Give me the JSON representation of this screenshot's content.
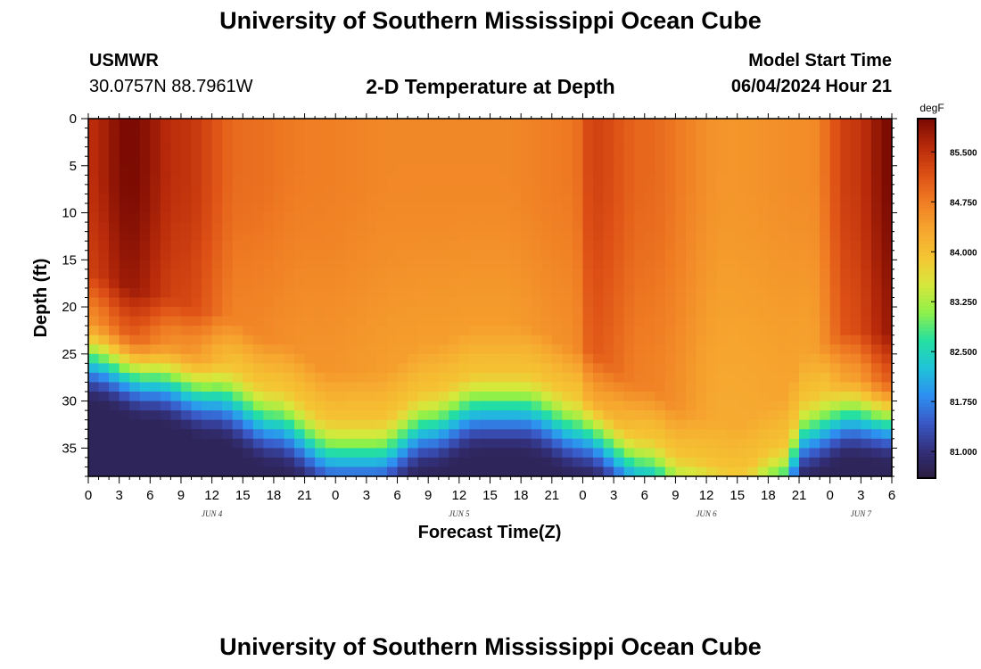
{
  "header": {
    "title": "University of Southern Mississippi Ocean Cube",
    "station": "USMWR",
    "coords": "30.0757N  88.7961W",
    "subtitle": "2-D Temperature at Depth",
    "model_label": "Model Start Time",
    "model_time": "06/04/2024 Hour 21"
  },
  "footer": {
    "title": "University of Southern Mississippi Ocean Cube"
  },
  "chart_data": {
    "type": "heatmap",
    "title": "2-D Temperature at Depth",
    "xlabel": "Forecast Time(Z)",
    "ylabel": "Depth (ft)",
    "x_tick_labels": [
      "0",
      "3",
      "6",
      "9",
      "12",
      "15",
      "18",
      "21",
      "0",
      "3",
      "6",
      "9",
      "12",
      "15",
      "18",
      "21",
      "0",
      "3",
      "6",
      "9",
      "12",
      "15",
      "18",
      "21",
      "0",
      "3",
      "6"
    ],
    "x_range_hours": [
      0,
      78
    ],
    "day_labels": [
      {
        "label": "JUN 4",
        "hour": 12
      },
      {
        "label": "JUN 5",
        "hour": 36
      },
      {
        "label": "JUN 6",
        "hour": 60
      },
      {
        "label": "JUN 7",
        "hour": 75
      }
    ],
    "y_ticks": [
      0,
      5,
      10,
      15,
      20,
      25,
      30,
      35
    ],
    "y_tick_labels": [
      "0",
      "5",
      "10",
      "15",
      "20",
      "25",
      "30",
      "35"
    ],
    "ylim": [
      0,
      38
    ],
    "colorbar": {
      "unit": "degF",
      "ticks": [
        81.0,
        81.75,
        82.5,
        83.25,
        84.0,
        84.75,
        85.5
      ],
      "tick_labels": [
        "81.000",
        "81.750",
        "82.500",
        "83.250",
        "84.000",
        "84.750",
        "85.500"
      ],
      "range": [
        80.6,
        86.0
      ],
      "colors": [
        "#2a1b3d",
        "#33307a",
        "#3a58c6",
        "#2e8ff0",
        "#1fc3d8",
        "#25e0a0",
        "#8ef04a",
        "#d6e83c",
        "#f5c533",
        "#f6a52f",
        "#f07e24",
        "#dd4f15",
        "#b82a0a",
        "#7a0a03"
      ]
    },
    "surface_profile": [
      {
        "hour": 0,
        "value": 85.55
      },
      {
        "hour": 4,
        "value": 86.0
      },
      {
        "hour": 9,
        "value": 85.5
      },
      {
        "hour": 15,
        "value": 84.9
      },
      {
        "hour": 22,
        "value": 84.75
      },
      {
        "hour": 30,
        "value": 84.65
      },
      {
        "hour": 40,
        "value": 84.65
      },
      {
        "hour": 47,
        "value": 84.8
      },
      {
        "hour": 49,
        "value": 85.3
      },
      {
        "hour": 54,
        "value": 84.95
      },
      {
        "hour": 62,
        "value": 84.5
      },
      {
        "hour": 70,
        "value": 84.6
      },
      {
        "hour": 74,
        "value": 85.4
      },
      {
        "hour": 78,
        "value": 86.0
      }
    ],
    "thermocline_depth_ft": [
      {
        "hour": 0,
        "value": 20.5
      },
      {
        "hour": 6,
        "value": 22.5
      },
      {
        "hour": 12,
        "value": 24.5
      },
      {
        "hour": 18,
        "value": 27.5
      },
      {
        "hour": 24,
        "value": 31.0
      },
      {
        "hour": 28,
        "value": 31.0
      },
      {
        "hour": 33,
        "value": 28.0
      },
      {
        "hour": 38,
        "value": 26.0
      },
      {
        "hour": 42,
        "value": 26.0
      },
      {
        "hour": 48,
        "value": 28.5
      },
      {
        "hour": 54,
        "value": 32.5
      },
      {
        "hour": 58,
        "value": 35.0
      },
      {
        "hour": 63,
        "value": 36.5
      },
      {
        "hour": 67,
        "value": 34.0
      },
      {
        "hour": 70,
        "value": 28.5
      },
      {
        "hour": 74,
        "value": 26.5
      },
      {
        "hour": 78,
        "value": 27.0
      }
    ],
    "bottom_value": 80.8
  }
}
